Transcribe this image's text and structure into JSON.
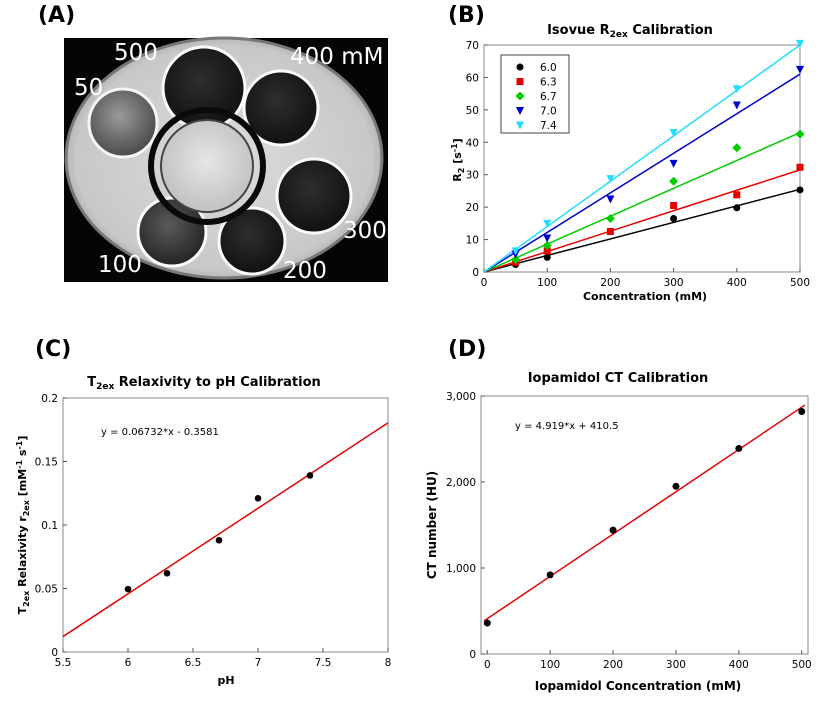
{
  "panels": {
    "a": {
      "label": "(A)",
      "concentrations": [
        "500",
        "400 mM",
        "50",
        "300",
        "100",
        "200"
      ]
    },
    "b": {
      "label": "(B)"
    },
    "c": {
      "label": "(C)"
    },
    "d": {
      "label": "(D)"
    }
  },
  "colors": {
    "black": "#000000",
    "red": "#e60000",
    "green": "#00cc00",
    "blue": "#0000cc",
    "cyan": "#22ddff",
    "fit": "#e60000"
  },
  "chart_data": [
    {
      "id": "B",
      "type": "scatter",
      "title": "Isovue R",
      "title_sub": "2ex",
      "title_suffix": " Calibration",
      "xlabel": "Concentration (mM)",
      "ylabel_main": "R",
      "ylabel_sub": "2",
      "ylabel_unit": " [s",
      "ylabel_sup": "-1",
      "ylabel_end": "]",
      "xlim": [
        0,
        500
      ],
      "ylim": [
        0,
        70
      ],
      "xticks": [
        "0",
        "100",
        "200",
        "300",
        "400",
        "500"
      ],
      "yticks": [
        "0",
        "10",
        "20",
        "30",
        "40",
        "50",
        "60",
        "70"
      ],
      "legend_position": "top-left",
      "series": [
        {
          "name": "6.0",
          "color": "#000000",
          "marker": "circle",
          "x": [
            50,
            100,
            300,
            400,
            500
          ],
          "y": [
            2.3,
            4.5,
            16.5,
            19.8,
            25.3
          ],
          "slope": 0.051
        },
        {
          "name": "6.3",
          "color": "#e60000",
          "marker": "square",
          "x": [
            50,
            100,
            200,
            300,
            400,
            500
          ],
          "y": [
            3.0,
            6.5,
            12.5,
            20.5,
            23.8,
            32.3
          ],
          "slope": 0.063
        },
        {
          "name": "6.7",
          "color": "#00cc00",
          "marker": "diamond",
          "x": [
            50,
            100,
            200,
            300,
            400,
            500
          ],
          "y": [
            3.8,
            8.2,
            16.5,
            28.0,
            38.3,
            42.5
          ],
          "slope": 0.086
        },
        {
          "name": "7.0",
          "color": "#0000cc",
          "marker": "triangle-down",
          "x": [
            50,
            100,
            200,
            300,
            400,
            500
          ],
          "y": [
            5.5,
            10.5,
            22.5,
            33.5,
            51.5,
            62.5
          ],
          "slope": 0.122
        },
        {
          "name": "7.4",
          "color": "#22ddff",
          "marker": "triangle-down",
          "x": [
            50,
            100,
            200,
            300,
            400,
            500
          ],
          "y": [
            6.5,
            15.0,
            28.8,
            43.0,
            56.5,
            70.5
          ],
          "slope": 0.14
        }
      ]
    },
    {
      "id": "C",
      "type": "scatter",
      "title": "T",
      "title_sub": "2ex",
      "title_suffix": " Relaxivity to pH Calibration",
      "xlabel": "pH",
      "ylabel_main": "T",
      "ylabel_sub": "2ex",
      "ylabel_mid": " Relaxivity r",
      "ylabel_sub2": "2ex",
      "ylabel_unit": " [mM",
      "ylabel_sup": "-1",
      "ylabel_unit2": " s",
      "ylabel_sup2": "-1",
      "ylabel_end": "]",
      "equation": "y = 0.06732*x - 0.3581",
      "xlim": [
        5.5,
        8
      ],
      "ylim": [
        0,
        0.2
      ],
      "xticks": [
        "5.5",
        "6",
        "6.5",
        "7",
        "7.5",
        "8"
      ],
      "yticks": [
        "0",
        "0.05",
        "0.1",
        "0.15",
        "0.2"
      ],
      "x": [
        6.0,
        6.3,
        6.7,
        7.0,
        7.4
      ],
      "y": [
        0.0495,
        0.062,
        0.088,
        0.121,
        0.139
      ],
      "fit": {
        "slope": 0.06732,
        "intercept": -0.3581
      }
    },
    {
      "id": "D",
      "type": "scatter",
      "title": "Iopamidol CT Calibration",
      "xlabel": "Iopamidol Concentration (mM)",
      "ylabel": "CT number (HU)",
      "equation": "y = 4.919*x + 410.5",
      "xlim": [
        -10,
        510
      ],
      "ylim": [
        0,
        3000
      ],
      "xticks": [
        "0",
        "100",
        "200",
        "300",
        "400",
        "500"
      ],
      "yticks": [
        "0",
        "1,000",
        "2,000",
        "3,000"
      ],
      "x": [
        0,
        100,
        200,
        300,
        400,
        500
      ],
      "y": [
        360,
        920,
        1440,
        1950,
        2390,
        2820
      ],
      "fit": {
        "slope": 4.919,
        "intercept": 410.5
      }
    }
  ]
}
